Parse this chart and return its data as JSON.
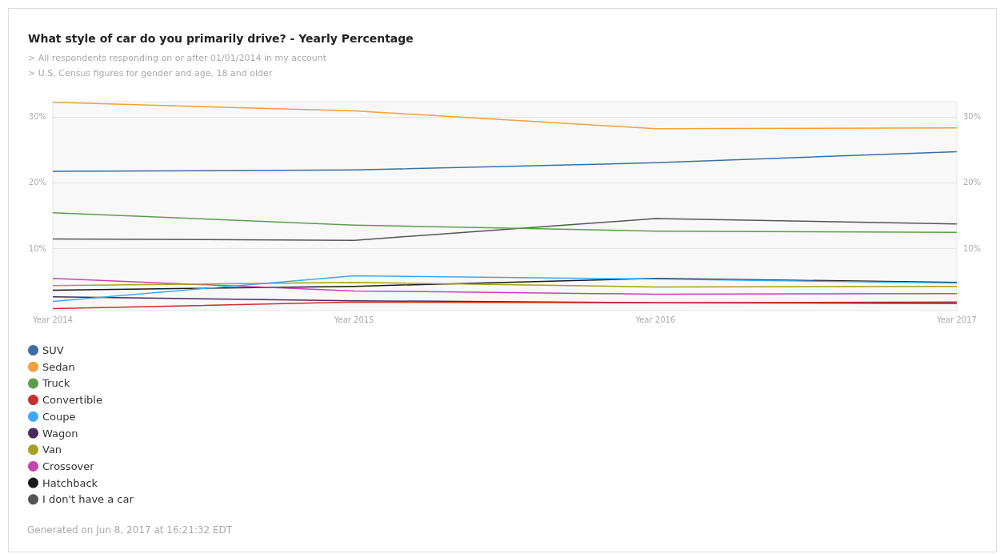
{
  "chart_data": {
    "type": "line",
    "title": "What style of car do you primarily drive? - Yearly Percentage",
    "subtitle": "> All respondents responding on or after 01/01/2014 in my account\n> U.S. Census figures for gender and age, 18 and older",
    "categories": [
      "Year 2014",
      "Year 2015",
      "Year 2016",
      "Year 2017"
    ],
    "series": [
      {
        "name": "SUV",
        "color": "#3a6ea5",
        "values": [
          21.7,
          21.9,
          23.0,
          24.7
        ]
      },
      {
        "name": "Sedan",
        "color": "#f0a23c",
        "values": [
          32.2,
          30.9,
          28.2,
          28.3
        ]
      },
      {
        "name": "Truck",
        "color": "#5a9e4a",
        "values": [
          15.4,
          13.5,
          12.6,
          12.4
        ]
      },
      {
        "name": "Convertible",
        "color": "#c9302c",
        "values": [
          0.8,
          1.8,
          1.7,
          1.8
        ]
      },
      {
        "name": "Coupe",
        "color": "#3fa9f5",
        "values": [
          1.9,
          5.8,
          5.3,
          4.7
        ]
      },
      {
        "name": "Wagon",
        "color": "#4b2a5e",
        "values": [
          2.6,
          2.0,
          1.7,
          1.6
        ]
      },
      {
        "name": "Van",
        "color": "#a8a020",
        "values": [
          4.3,
          4.8,
          4.1,
          4.2
        ]
      },
      {
        "name": "Crossover",
        "color": "#c545b0",
        "values": [
          5.4,
          3.5,
          3.0,
          3.1
        ]
      },
      {
        "name": "Hatchback",
        "color": "#1a1a1a",
        "values": [
          3.6,
          4.2,
          5.4,
          4.8
        ]
      },
      {
        "name": "I don't have a car",
        "color": "#555555",
        "values": [
          11.4,
          11.2,
          14.5,
          13.7
        ]
      }
    ],
    "ylim": [
      0.5,
      32.3
    ],
    "yticks": [
      {
        "value": 10,
        "label": "10%"
      },
      {
        "value": 20,
        "label": "20%"
      },
      {
        "value": 30,
        "label": "30%"
      }
    ],
    "y2lim": [
      0.5,
      32.3
    ],
    "y2ticks": [
      {
        "value": 10,
        "label": "10%"
      },
      {
        "value": 20,
        "label": "20%"
      },
      {
        "value": 30,
        "label": "30%"
      }
    ],
    "grid": "y",
    "legend": "bottom left",
    "marker": "none",
    "line_style": "solid",
    "annotations": [
      "Generated on Jun 8, 2017 at 16:21:32 EDT"
    ]
  }
}
